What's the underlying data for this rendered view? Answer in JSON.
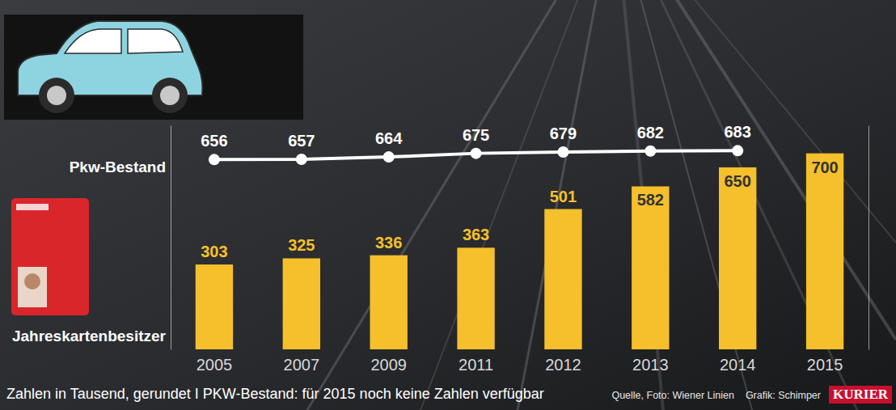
{
  "chart_data": {
    "type": "bar",
    "categories": [
      "2005",
      "2007",
      "2009",
      "2011",
      "2012",
      "2013",
      "2014",
      "2015"
    ],
    "series": [
      {
        "name": "Pkw-Bestand",
        "type": "line",
        "axis": "y2",
        "color": "#ffffff",
        "marker": "circle",
        "values": [
          656,
          657,
          664,
          675,
          679,
          682,
          683,
          null
        ]
      },
      {
        "name": "Jahreskartenbesitzer",
        "type": "bar",
        "color": "#f5c02b",
        "values": [
          303,
          325,
          336,
          363,
          501,
          582,
          650,
          700
        ]
      }
    ],
    "ylim": [
      0,
      800
    ],
    "yticks": [],
    "y2lim": [
      80,
      760
    ],
    "y2ticks": [],
    "data_labels": true,
    "tick_labels": "x",
    "annotations": [
      "Zahlen in Tausend, gerundet I PKW-Bestand: für 2015 noch keine Zahlen verfügbar",
      "Quelle, Foto: Wiener Linien",
      "Grafik: Schimper",
      "KURIER"
    ]
  }
}
